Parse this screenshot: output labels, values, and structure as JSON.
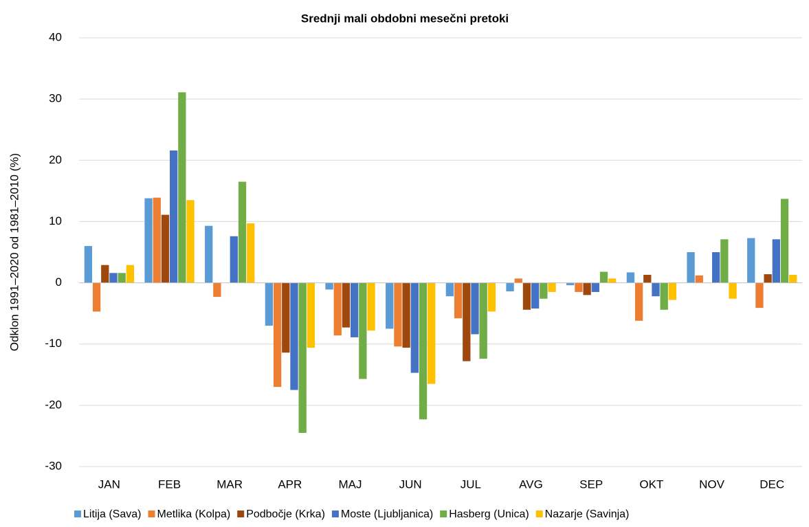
{
  "chart_data": {
    "type": "bar",
    "title": "Srednji mali obdobni mesečni pretoki",
    "y_label": "Odklon 1991–2020 od 1981–2010 (%)",
    "categories": [
      "JAN",
      "FEB",
      "MAR",
      "APR",
      "MAJ",
      "JUN",
      "JUL",
      "AVG",
      "SEP",
      "OKT",
      "NOV",
      "DEC"
    ],
    "series": [
      {
        "name": "Litija (Sava)",
        "color": "#5b9bd5",
        "values": [
          6.0,
          13.8,
          9.3,
          -7.0,
          -1.1,
          -7.5,
          -2.2,
          -1.4,
          -0.4,
          1.7,
          5.0,
          7.3
        ]
      },
      {
        "name": "Metlika (Kolpa)",
        "color": "#ed7d31",
        "values": [
          -4.7,
          13.9,
          -2.3,
          -17.0,
          -8.6,
          -10.4,
          -5.8,
          0.7,
          -1.5,
          -6.2,
          1.2,
          -4.1
        ]
      },
      {
        "name": "Podbočje (Krka)",
        "color": "#9e480e",
        "values": [
          2.9,
          11.1,
          0,
          -11.4,
          -7.3,
          -10.6,
          -12.8,
          -4.4,
          -2.0,
          1.3,
          0,
          1.4
        ]
      },
      {
        "name": "Moste (Ljubljanica)",
        "color": "#4472c4",
        "values": [
          1.6,
          21.6,
          7.6,
          -17.5,
          -8.9,
          -14.7,
          -8.4,
          -4.2,
          -1.5,
          -2.2,
          5.0,
          7.1
        ]
      },
      {
        "name": "Hasberg (Unica)",
        "color": "#70ad47",
        "values": [
          1.6,
          31.1,
          16.5,
          -24.5,
          -15.7,
          -22.3,
          -12.4,
          -2.6,
          1.8,
          -4.4,
          7.1,
          13.7
        ]
      },
      {
        "name": "Nazarje (Savinja)",
        "color": "#ffc000",
        "values": [
          2.9,
          13.5,
          9.7,
          -10.6,
          -7.8,
          -16.5,
          -4.7,
          -1.5,
          0.7,
          -2.8,
          -2.6,
          1.3
        ]
      }
    ],
    "ylim": [
      -30,
      40
    ],
    "yticks": [
      -30,
      -20,
      -10,
      0,
      10,
      20,
      30,
      40
    ],
    "grid": true
  }
}
